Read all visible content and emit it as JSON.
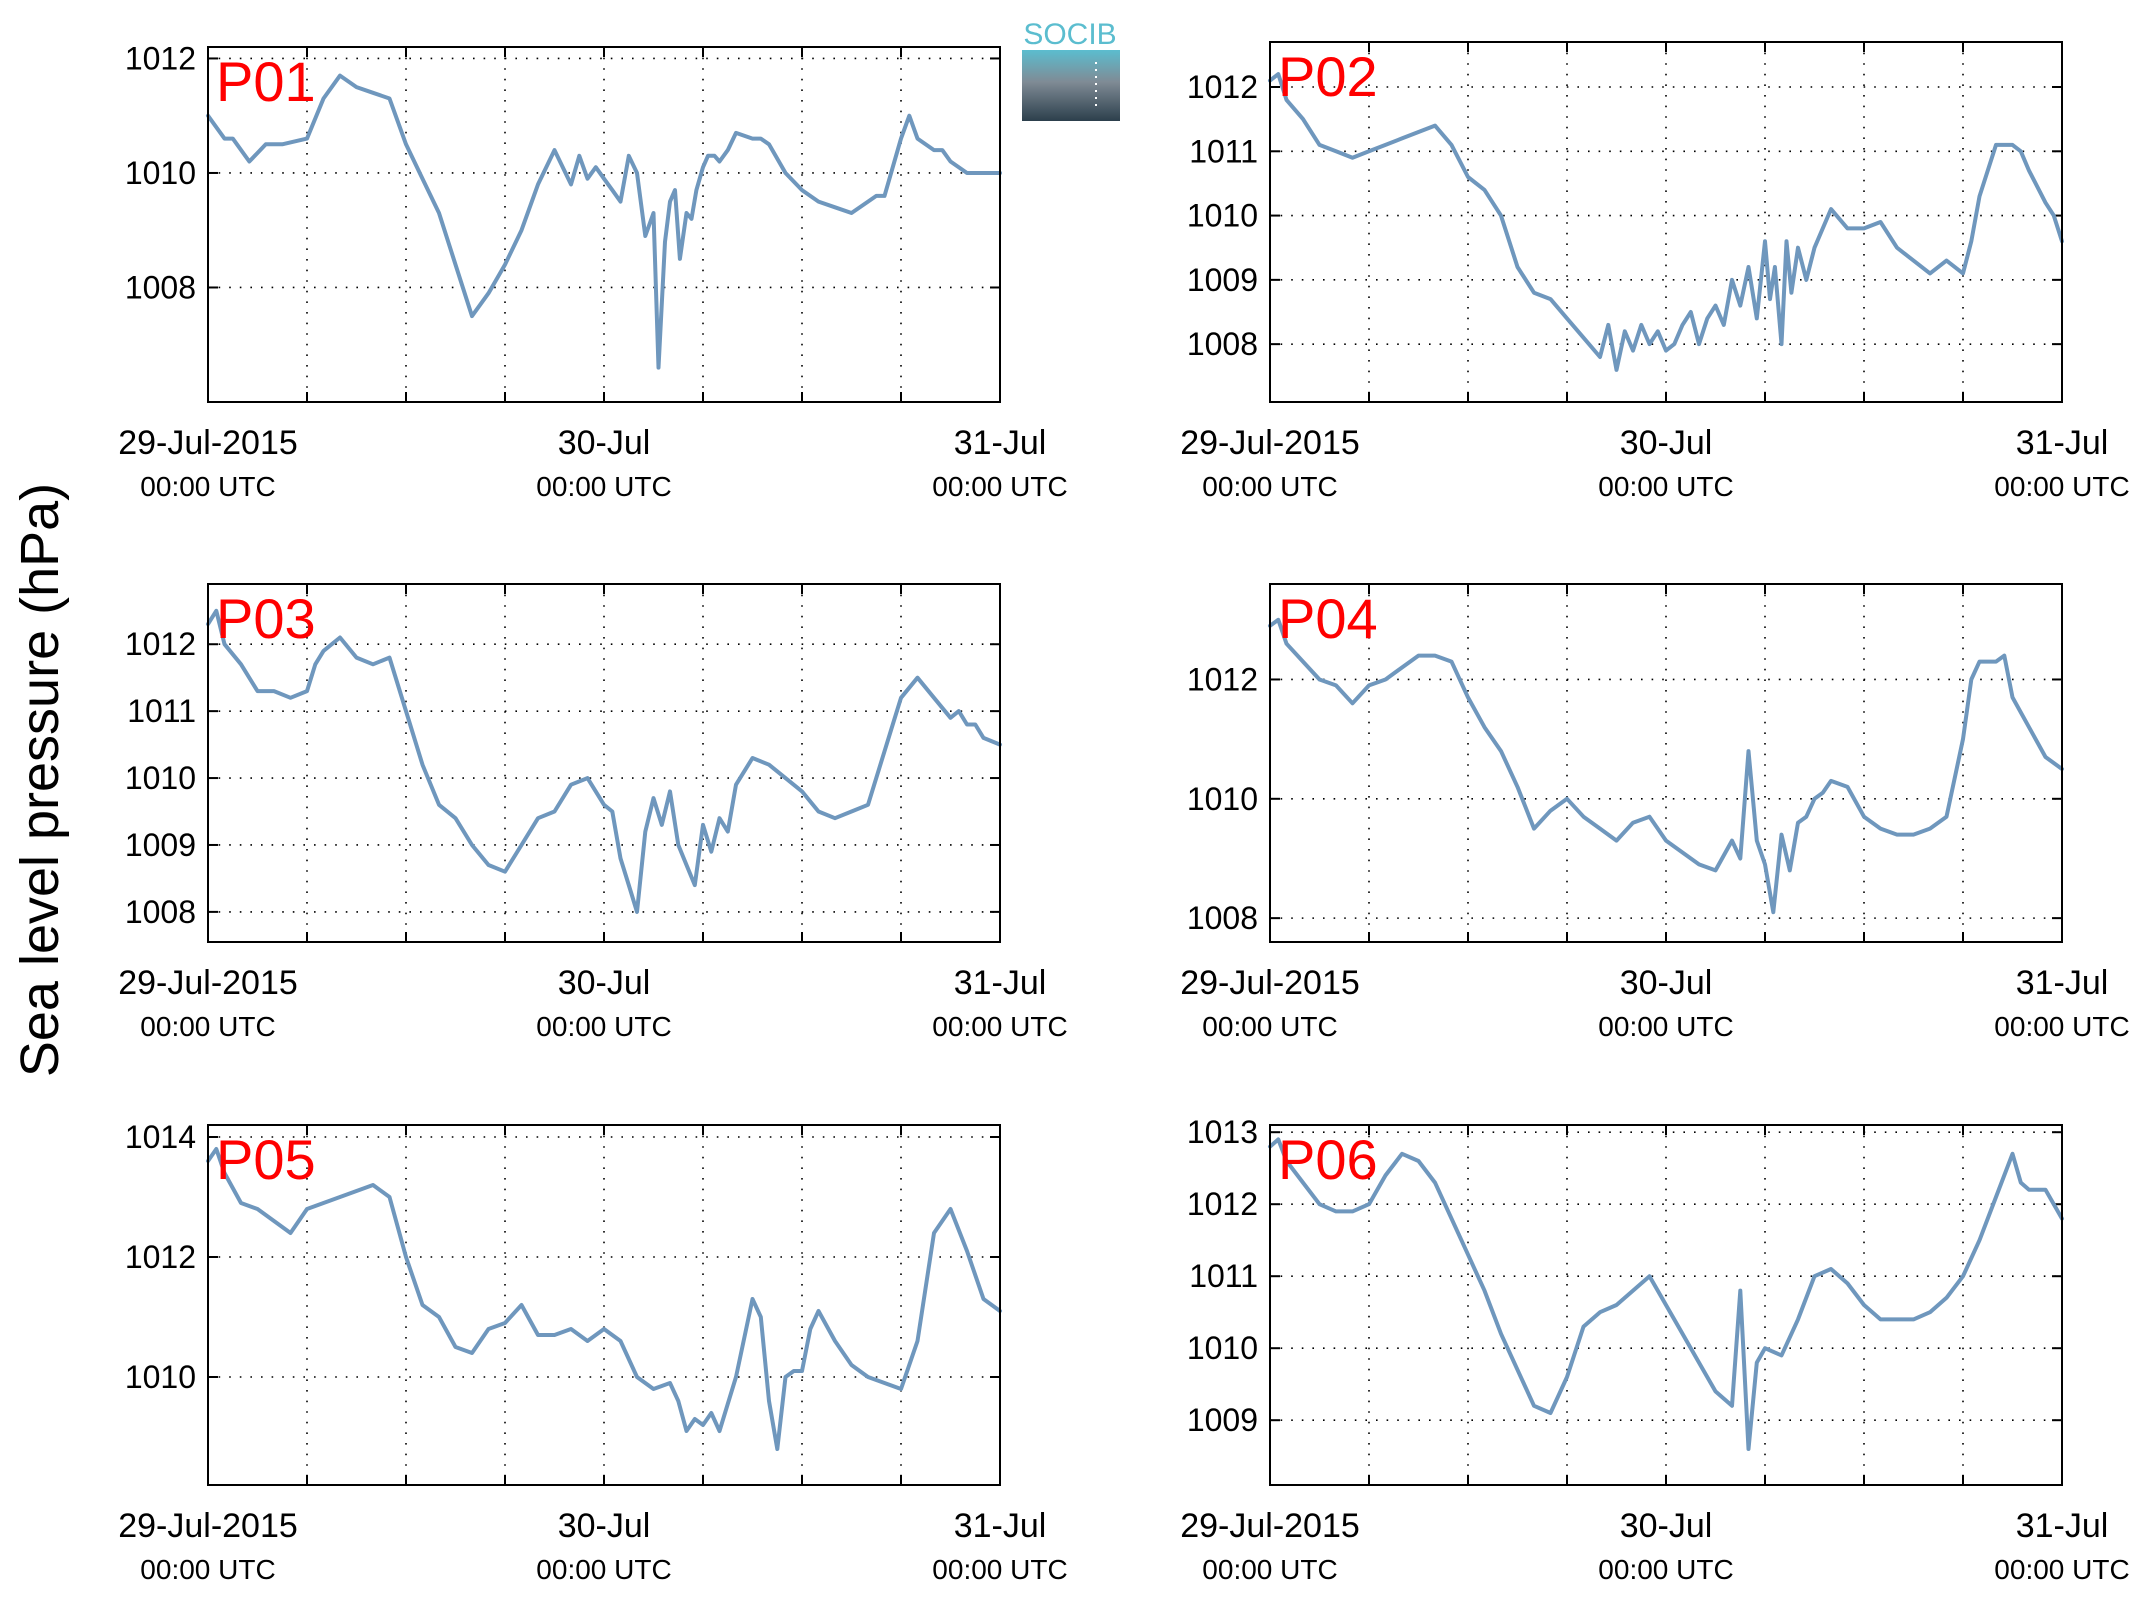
{
  "figure": {
    "ylabel": "Sea level pressure (hPa)",
    "logo_text": "SOCIB",
    "line_color": "#6f97bd",
    "label_color": "#ff0000"
  },
  "chart_data": [
    {
      "type": "line",
      "label": "P01",
      "xlim": [
        0,
        48
      ],
      "ylim": [
        1006,
        1012.2
      ],
      "yticks": [
        1008,
        1010,
        1012
      ],
      "ytick_labels": [
        "1008",
        "1010",
        "1012"
      ],
      "xticks": [
        0,
        6,
        12,
        18,
        24,
        30,
        36,
        42,
        48
      ],
      "xtick_labels": [
        {
          "at": 0,
          "main": "29-Jul-2015",
          "sub": "00:00 UTC"
        },
        {
          "at": 24,
          "main": "30-Jul",
          "sub": "00:00 UTC"
        },
        {
          "at": 48,
          "main": "31-Jul",
          "sub": "00:00 UTC"
        }
      ],
      "grid": true,
      "series": [
        {
          "x": [
            0,
            1,
            1.5,
            2.5,
            3.5,
            4.5,
            6,
            7,
            8,
            9,
            10,
            11,
            12,
            13,
            14,
            15,
            16,
            17,
            18,
            19,
            20,
            21,
            22,
            22.5,
            23,
            23.5,
            24,
            24.5,
            25,
            25.5,
            26,
            26.5,
            27,
            27.3,
            27.7,
            28,
            28.3,
            28.6,
            29,
            29.3,
            29.6,
            30,
            30.3,
            30.7,
            31,
            31.5,
            32,
            33,
            33.5,
            34,
            35,
            36,
            37,
            38,
            39,
            40,
            40.5,
            41,
            42,
            42.5,
            43,
            44,
            44.5,
            45,
            46,
            47,
            48
          ],
          "y": [
            1011.0,
            1010.6,
            1010.6,
            1010.2,
            1010.5,
            1010.5,
            1010.6,
            1011.3,
            1011.7,
            1011.5,
            1011.4,
            1011.3,
            1010.5,
            1009.9,
            1009.3,
            1008.4,
            1007.5,
            1007.9,
            1008.4,
            1009.0,
            1009.8,
            1010.4,
            1009.8,
            1010.3,
            1009.9,
            1010.1,
            1009.9,
            1009.7,
            1009.5,
            1010.3,
            1010.0,
            1008.9,
            1009.3,
            1006.6,
            1008.8,
            1009.5,
            1009.7,
            1008.5,
            1009.3,
            1009.2,
            1009.7,
            1010.1,
            1010.3,
            1010.3,
            1010.2,
            1010.4,
            1010.7,
            1010.6,
            1010.6,
            1010.5,
            1010.0,
            1009.7,
            1009.5,
            1009.4,
            1009.3,
            1009.5,
            1009.6,
            1009.6,
            1010.6,
            1011.0,
            1010.6,
            1010.4,
            1010.4,
            1010.2,
            1010.0,
            1010.0,
            1010.0
          ]
        }
      ]
    },
    {
      "type": "line",
      "label": "P02",
      "xlim": [
        0,
        48
      ],
      "ylim": [
        1007.1,
        1012.7
      ],
      "yticks": [
        1008,
        1009,
        1010,
        1011,
        1012
      ],
      "ytick_labels": [
        "1008",
        "1009",
        "1010",
        "1011",
        "1012"
      ],
      "xticks": [
        0,
        6,
        12,
        18,
        24,
        30,
        36,
        42,
        48
      ],
      "xtick_labels": [
        {
          "at": 0,
          "main": "29-Jul-2015",
          "sub": "00:00 UTC"
        },
        {
          "at": 24,
          "main": "30-Jul",
          "sub": "00:00 UTC"
        },
        {
          "at": 48,
          "main": "31-Jul",
          "sub": "00:00 UTC"
        }
      ],
      "grid": true,
      "series": [
        {
          "x": [
            0,
            0.5,
            1,
            2,
            3,
            4,
            5,
            6,
            7,
            8,
            9,
            10,
            11,
            12,
            13,
            14,
            15,
            16,
            17,
            18,
            19,
            20,
            20.5,
            21,
            21.5,
            22,
            22.5,
            23,
            23.5,
            24,
            24.5,
            25,
            25.5,
            26,
            26.5,
            27,
            27.5,
            28,
            28.5,
            29,
            29.5,
            30,
            30.3,
            30.6,
            31,
            31.3,
            31.6,
            32,
            32.5,
            33,
            34,
            35,
            36,
            37,
            38,
            39,
            40,
            41,
            42,
            42.5,
            43,
            44,
            45,
            45.5,
            46,
            47,
            47.5,
            48
          ],
          "y": [
            1012.1,
            1012.2,
            1011.8,
            1011.5,
            1011.1,
            1011.0,
            1010.9,
            1011.0,
            1011.1,
            1011.2,
            1011.3,
            1011.4,
            1011.1,
            1010.6,
            1010.4,
            1010.0,
            1009.2,
            1008.8,
            1008.7,
            1008.4,
            1008.1,
            1007.8,
            1008.3,
            1007.6,
            1008.2,
            1007.9,
            1008.3,
            1008.0,
            1008.2,
            1007.9,
            1008.0,
            1008.3,
            1008.5,
            1008.0,
            1008.4,
            1008.6,
            1008.3,
            1009.0,
            1008.6,
            1009.2,
            1008.4,
            1009.6,
            1008.7,
            1009.2,
            1008.0,
            1009.6,
            1008.8,
            1009.5,
            1009.0,
            1009.5,
            1010.1,
            1009.8,
            1009.8,
            1009.9,
            1009.5,
            1009.3,
            1009.1,
            1009.3,
            1009.1,
            1009.6,
            1010.3,
            1011.1,
            1011.1,
            1011.0,
            1010.7,
            1010.2,
            1010.0,
            1009.6
          ]
        }
      ]
    },
    {
      "type": "line",
      "label": "P03",
      "xlim": [
        0,
        48
      ],
      "ylim": [
        1007.55,
        1012.9
      ],
      "yticks": [
        1008,
        1009,
        1010,
        1011,
        1012
      ],
      "ytick_labels": [
        "1008",
        "1009",
        "1010",
        "1011",
        "1012"
      ],
      "xticks": [
        0,
        6,
        12,
        18,
        24,
        30,
        36,
        42,
        48
      ],
      "xtick_labels": [
        {
          "at": 0,
          "main": "29-Jul-2015",
          "sub": "00:00 UTC"
        },
        {
          "at": 24,
          "main": "30-Jul",
          "sub": "00:00 UTC"
        },
        {
          "at": 48,
          "main": "31-Jul",
          "sub": "00:00 UTC"
        }
      ],
      "grid": true,
      "series": [
        {
          "x": [
            0,
            0.5,
            1,
            2,
            3,
            4,
            5,
            6,
            6.5,
            7,
            8,
            9,
            10,
            11,
            12,
            13,
            14,
            15,
            16,
            17,
            18,
            19,
            20,
            21,
            22,
            23,
            24,
            24.5,
            25,
            25.5,
            26,
            26.5,
            27,
            27.5,
            28,
            28.5,
            29,
            29.5,
            30,
            30.5,
            31,
            31.5,
            32,
            33,
            34,
            35,
            36,
            37,
            38,
            39,
            40,
            41,
            42,
            43,
            44,
            45,
            45.5,
            46,
            46.5,
            47,
            48
          ],
          "y": [
            1012.3,
            1012.5,
            1012.0,
            1011.7,
            1011.3,
            1011.3,
            1011.2,
            1011.3,
            1011.7,
            1011.9,
            1012.1,
            1011.8,
            1011.7,
            1011.8,
            1011.0,
            1010.2,
            1009.6,
            1009.4,
            1009.0,
            1008.7,
            1008.6,
            1009.0,
            1009.4,
            1009.5,
            1009.9,
            1010.0,
            1009.6,
            1009.5,
            1008.8,
            1008.4,
            1008.0,
            1009.2,
            1009.7,
            1009.3,
            1009.8,
            1009.0,
            1008.7,
            1008.4,
            1009.3,
            1008.9,
            1009.4,
            1009.2,
            1009.9,
            1010.3,
            1010.2,
            1010.0,
            1009.8,
            1009.5,
            1009.4,
            1009.5,
            1009.6,
            1010.4,
            1011.2,
            1011.5,
            1011.2,
            1010.9,
            1011.0,
            1010.8,
            1010.8,
            1010.6,
            1010.5
          ]
        }
      ]
    },
    {
      "type": "line",
      "label": "P04",
      "xlim": [
        0,
        48
      ],
      "ylim": [
        1007.6,
        1013.6
      ],
      "yticks": [
        1008,
        1010,
        1012
      ],
      "ytick_labels": [
        "1008",
        "1010",
        "1012"
      ],
      "xticks": [
        0,
        6,
        12,
        18,
        24,
        30,
        36,
        42,
        48
      ],
      "xtick_labels": [
        {
          "at": 0,
          "main": "29-Jul-2015",
          "sub": "00:00 UTC"
        },
        {
          "at": 24,
          "main": "30-Jul",
          "sub": "00:00 UTC"
        },
        {
          "at": 48,
          "main": "31-Jul",
          "sub": "00:00 UTC"
        }
      ],
      "grid": true,
      "series": [
        {
          "x": [
            0,
            0.5,
            1,
            2,
            3,
            4,
            5,
            6,
            7,
            8,
            9,
            10,
            11,
            12,
            13,
            14,
            15,
            16,
            17,
            18,
            19,
            20,
            21,
            22,
            23,
            24,
            25,
            26,
            27,
            28,
            28.5,
            29,
            29.5,
            30,
            30.5,
            31,
            31.5,
            32,
            32.5,
            33,
            33.5,
            34,
            35,
            36,
            37,
            38,
            39,
            40,
            41,
            42,
            42.5,
            43,
            44,
            44.5,
            45,
            46,
            47,
            48
          ],
          "y": [
            1012.9,
            1013.0,
            1012.6,
            1012.3,
            1012.0,
            1011.9,
            1011.6,
            1011.9,
            1012.0,
            1012.2,
            1012.4,
            1012.4,
            1012.3,
            1011.7,
            1011.2,
            1010.8,
            1010.2,
            1009.5,
            1009.8,
            1010.0,
            1009.7,
            1009.5,
            1009.3,
            1009.6,
            1009.7,
            1009.3,
            1009.1,
            1008.9,
            1008.8,
            1009.3,
            1009.0,
            1010.8,
            1009.3,
            1008.9,
            1008.1,
            1009.4,
            1008.8,
            1009.6,
            1009.7,
            1010.0,
            1010.1,
            1010.3,
            1010.2,
            1009.7,
            1009.5,
            1009.4,
            1009.4,
            1009.5,
            1009.7,
            1011.0,
            1012.0,
            1012.3,
            1012.3,
            1012.4,
            1011.7,
            1011.2,
            1010.7,
            1010.5
          ]
        }
      ]
    },
    {
      "type": "line",
      "label": "P05",
      "xlim": [
        0,
        48
      ],
      "ylim": [
        1008.2,
        1014.2
      ],
      "yticks": [
        1010,
        1012,
        1014
      ],
      "ytick_labels": [
        "1010",
        "1012",
        "1014"
      ],
      "xticks": [
        0,
        6,
        12,
        18,
        24,
        30,
        36,
        42,
        48
      ],
      "xtick_labels": [
        {
          "at": 0,
          "main": "29-Jul-2015",
          "sub": "00:00 UTC"
        },
        {
          "at": 24,
          "main": "30-Jul",
          "sub": "00:00 UTC"
        },
        {
          "at": 48,
          "main": "31-Jul",
          "sub": "00:00 UTC"
        }
      ],
      "grid": true,
      "series": [
        {
          "x": [
            0,
            0.5,
            1,
            2,
            3,
            4,
            5,
            6,
            7,
            8,
            9,
            10,
            11,
            12,
            13,
            14,
            15,
            16,
            17,
            18,
            19,
            20,
            21,
            22,
            23,
            24,
            25,
            26,
            27,
            28,
            28.5,
            29,
            29.5,
            30,
            30.5,
            31,
            32,
            33,
            33.5,
            34,
            34.5,
            35,
            35.5,
            36,
            36.5,
            37,
            38,
            39,
            40,
            41,
            42,
            43,
            44,
            45,
            46,
            47,
            48
          ],
          "y": [
            1013.6,
            1013.8,
            1013.4,
            1012.9,
            1012.8,
            1012.6,
            1012.4,
            1012.8,
            1012.9,
            1013.0,
            1013.1,
            1013.2,
            1013.0,
            1012.0,
            1011.2,
            1011.0,
            1010.5,
            1010.4,
            1010.8,
            1010.9,
            1011.2,
            1010.7,
            1010.7,
            1010.8,
            1010.6,
            1010.8,
            1010.6,
            1010.0,
            1009.8,
            1009.9,
            1009.6,
            1009.1,
            1009.3,
            1009.2,
            1009.4,
            1009.1,
            1010.0,
            1011.3,
            1011.0,
            1009.6,
            1008.8,
            1010.0,
            1010.1,
            1010.1,
            1010.8,
            1011.1,
            1010.6,
            1010.2,
            1010.0,
            1009.9,
            1009.8,
            1010.6,
            1012.4,
            1012.8,
            1012.1,
            1011.3,
            1011.1
          ]
        }
      ]
    },
    {
      "type": "line",
      "label": "P06",
      "xlim": [
        0,
        48
      ],
      "ylim": [
        1008.1,
        1013.1
      ],
      "yticks": [
        1009,
        1010,
        1011,
        1012,
        1013
      ],
      "ytick_labels": [
        "1009",
        "1010",
        "1011",
        "1012",
        "1013"
      ],
      "xticks": [
        0,
        6,
        12,
        18,
        24,
        30,
        36,
        42,
        48
      ],
      "xtick_labels": [
        {
          "at": 0,
          "main": "29-Jul-2015",
          "sub": "00:00 UTC"
        },
        {
          "at": 24,
          "main": "30-Jul",
          "sub": "00:00 UTC"
        },
        {
          "at": 48,
          "main": "31-Jul",
          "sub": "00:00 UTC"
        }
      ],
      "grid": true,
      "series": [
        {
          "x": [
            0,
            0.5,
            1,
            2,
            3,
            4,
            5,
            6,
            7,
            8,
            9,
            10,
            11,
            12,
            13,
            14,
            15,
            16,
            17,
            18,
            19,
            20,
            21,
            22,
            23,
            24,
            25,
            26,
            27,
            28,
            28.5,
            29,
            29.5,
            30,
            31,
            32,
            33,
            34,
            35,
            36,
            37,
            38,
            39,
            40,
            41,
            42,
            43,
            44,
            45,
            45.5,
            46,
            47,
            48
          ],
          "y": [
            1012.8,
            1012.9,
            1012.6,
            1012.3,
            1012.0,
            1011.9,
            1011.9,
            1012.0,
            1012.4,
            1012.7,
            1012.6,
            1012.3,
            1011.8,
            1011.3,
            1010.8,
            1010.2,
            1009.7,
            1009.2,
            1009.1,
            1009.6,
            1010.3,
            1010.5,
            1010.6,
            1010.8,
            1011.0,
            1010.6,
            1010.2,
            1009.8,
            1009.4,
            1009.2,
            1010.8,
            1008.6,
            1009.8,
            1010.0,
            1009.9,
            1010.4,
            1011.0,
            1011.1,
            1010.9,
            1010.6,
            1010.4,
            1010.4,
            1010.4,
            1010.5,
            1010.7,
            1011.0,
            1011.5,
            1012.1,
            1012.7,
            1012.3,
            1012.2,
            1012.2,
            1011.8
          ]
        }
      ]
    }
  ]
}
